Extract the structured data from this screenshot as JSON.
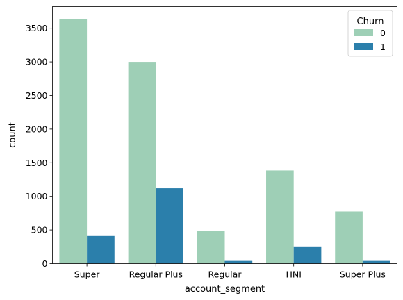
{
  "chart_data": {
    "type": "bar",
    "categories": [
      "Super",
      "Regular Plus",
      "Regular",
      "HNI",
      "Super Plus"
    ],
    "series": [
      {
        "name": "0",
        "color": "#9ecfb6",
        "values": [
          3640,
          3000,
          485,
          1385,
          775
        ]
      },
      {
        "name": "1",
        "color": "#2b7fab",
        "values": [
          410,
          1120,
          40,
          255,
          40
        ]
      }
    ],
    "xlabel": "account_segment",
    "ylabel": "count",
    "ylim": [
      0,
      3822
    ],
    "yticks": [
      0,
      500,
      1000,
      1500,
      2000,
      2500,
      3000,
      3500
    ],
    "legend": {
      "title": "Churn",
      "placement": "top-right"
    },
    "grid": false
  }
}
